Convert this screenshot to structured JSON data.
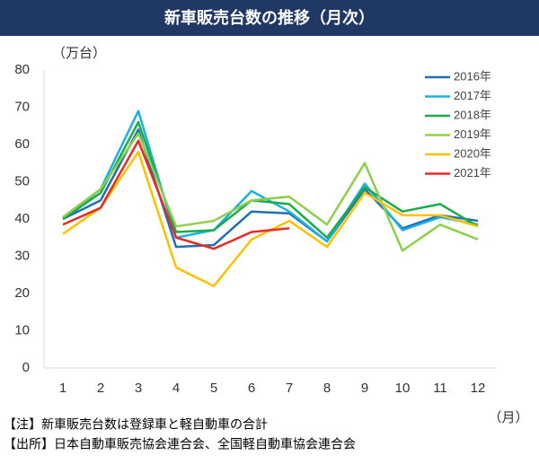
{
  "chart_data": {
    "type": "line",
    "title": "新車販売台数の推移（月次）",
    "y_label": "（万台）",
    "x_label": "（月）",
    "notes": [
      "【注】新車販売台数は登録車と軽自動車の合計",
      "【出所】日本自動車販売協会連合会、全国軽自動車協会連合会"
    ],
    "categories": [
      "1",
      "2",
      "3",
      "4",
      "5",
      "6",
      "7",
      "8",
      "9",
      "10",
      "11",
      "12"
    ],
    "series": [
      {
        "name": "2016年",
        "color": "#1f6fb4",
        "values": [
          40,
          45,
          64,
          32.5,
          33,
          42,
          41.5,
          34,
          48,
          37.5,
          41,
          39.5
        ]
      },
      {
        "name": "2017年",
        "color": "#1ab0e8",
        "values": [
          40,
          48,
          69,
          35,
          37,
          47.5,
          42,
          34,
          49.5,
          37,
          40.5,
          38.5
        ]
      },
      {
        "name": "2018年",
        "color": "#1aab4b",
        "values": [
          40,
          47,
          66,
          36.5,
          37,
          45,
          44,
          35,
          48.5,
          42,
          44,
          38
        ]
      },
      {
        "name": "2019年",
        "color": "#8dcf4a",
        "values": [
          40.5,
          48,
          63,
          38,
          39.5,
          45,
          46,
          38.5,
          55,
          31.5,
          38.5,
          34.5
        ]
      },
      {
        "name": "2020年",
        "color": "#ffc000",
        "values": [
          36,
          43,
          58,
          27,
          22,
          34.5,
          39.5,
          32.5,
          47,
          41,
          41,
          38
        ]
      },
      {
        "name": "2021年",
        "color": "#e52b25",
        "values": [
          38.5,
          43,
          61,
          35,
          32,
          36.5,
          37.5,
          null,
          null,
          null,
          null,
          null
        ]
      }
    ],
    "ylim": [
      0,
      80
    ],
    "yticks": [
      0,
      10,
      20,
      30,
      40,
      50,
      60,
      70,
      80
    ],
    "grid": false,
    "legend": "upper right"
  }
}
